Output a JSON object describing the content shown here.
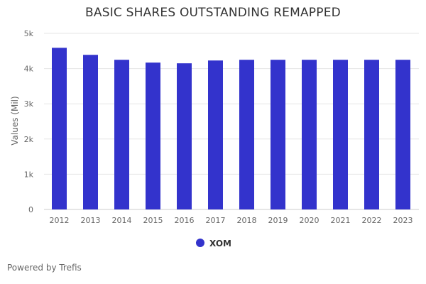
{
  "chart_data": {
    "type": "bar",
    "title": "BASIC SHARES OUTSTANDING REMAPPED",
    "ylabel": "Values (Mil)",
    "ylim": [
      0,
      5000
    ],
    "yticks": [
      0,
      1000,
      2000,
      3000,
      4000,
      5000
    ],
    "ytick_labels": [
      "0",
      "1k",
      "2k",
      "3k",
      "4k",
      "5k"
    ],
    "categories": [
      "2012",
      "2013",
      "2014",
      "2015",
      "2016",
      "2017",
      "2018",
      "2019",
      "2020",
      "2021",
      "2022",
      "2023"
    ],
    "series": [
      {
        "name": "XOM",
        "color": "#3333cc",
        "values": [
          4590,
          4390,
          4250,
          4170,
          4150,
          4230,
          4250,
          4250,
          4250,
          4250,
          4250,
          4250
        ]
      }
    ],
    "grid": true,
    "legend": "bottom-center"
  },
  "footer": {
    "credit": "Powered by Trefis"
  }
}
